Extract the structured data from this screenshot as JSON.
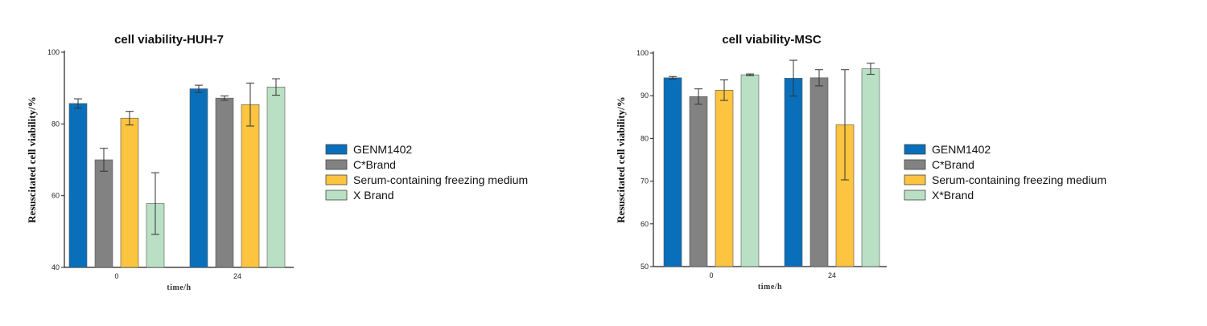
{
  "chart_data": [
    {
      "type": "bar",
      "title": "cell viability-HUH-7",
      "xlabel": "time/h",
      "ylabel": "Resuscitated cell viability/%",
      "ylim": [
        40,
        100
      ],
      "yticks": [
        40,
        60,
        80,
        100
      ],
      "categories": [
        "0",
        "24"
      ],
      "series": [
        {
          "name": "GENM1402",
          "color": "#0a6fbb",
          "values": [
            85.7,
            89.8
          ],
          "errors": [
            1.3,
            1.0
          ]
        },
        {
          "name": "C*Brand",
          "color": "#828282",
          "values": [
            70.0,
            87.2
          ],
          "errors": [
            3.2,
            0.6
          ]
        },
        {
          "name": "Serum-containing freezing medium",
          "color": "#fcc43f",
          "values": [
            81.6,
            85.4
          ],
          "errors": [
            1.9,
            6.0
          ]
        },
        {
          "name": "X Brand",
          "color": "#b9e0c4",
          "values": [
            57.8,
            90.3
          ],
          "errors": [
            8.6,
            2.3
          ]
        }
      ],
      "grid": false,
      "legend": "right"
    },
    {
      "type": "bar",
      "title": "cell viability-MSC",
      "xlabel": "time/h",
      "ylabel": "Resuscitated cell viability/%",
      "ylim": [
        50,
        100
      ],
      "yticks": [
        50,
        60,
        70,
        80,
        90,
        100
      ],
      "categories": [
        "0",
        "24"
      ],
      "series": [
        {
          "name": "GENM1402",
          "color": "#0a6fbb",
          "values": [
            94.2,
            94.1
          ],
          "errors": [
            0.3,
            4.2
          ]
        },
        {
          "name": "C*Brand",
          "color": "#828282",
          "values": [
            89.8,
            94.2
          ],
          "errors": [
            1.8,
            1.9
          ]
        },
        {
          "name": "Serum-containing freezing medium",
          "color": "#fcc43f",
          "values": [
            91.3,
            83.2
          ],
          "errors": [
            2.4,
            12.9
          ]
        },
        {
          "name": "X*Brand",
          "color": "#b9e0c4",
          "values": [
            94.9,
            96.3
          ],
          "errors": [
            0.2,
            1.3
          ]
        }
      ],
      "grid": false,
      "legend": "right"
    }
  ]
}
